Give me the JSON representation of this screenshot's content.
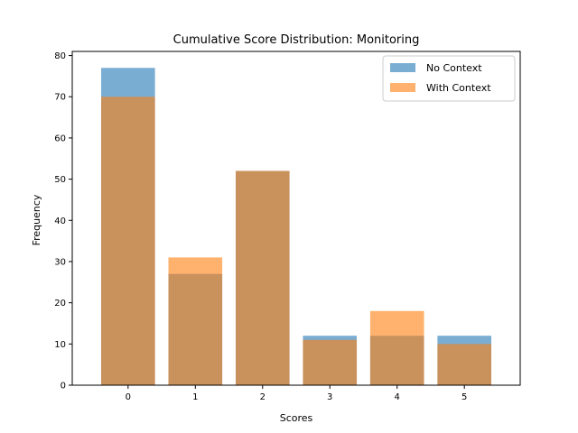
{
  "chart_data": {
    "type": "bar",
    "title": "Cumulative Score Distribution: Monitoring",
    "xlabel": "Scores",
    "ylabel": "Frequency",
    "categories": [
      "0",
      "1",
      "2",
      "3",
      "4",
      "5"
    ],
    "ylim": [
      0,
      81
    ],
    "yticks": [
      0,
      10,
      20,
      30,
      40,
      50,
      60,
      70,
      80
    ],
    "series": [
      {
        "name": "No Context",
        "values": [
          77,
          27,
          52,
          12,
          12,
          12
        ],
        "color": "#1f77b4",
        "opacity": 0.6
      },
      {
        "name": "With Context",
        "values": [
          70,
          31,
          52,
          11,
          18,
          10
        ],
        "color": "#ff7f0e",
        "opacity": 0.6
      }
    ],
    "legend": {
      "position": "top-right"
    },
    "grid": false
  }
}
